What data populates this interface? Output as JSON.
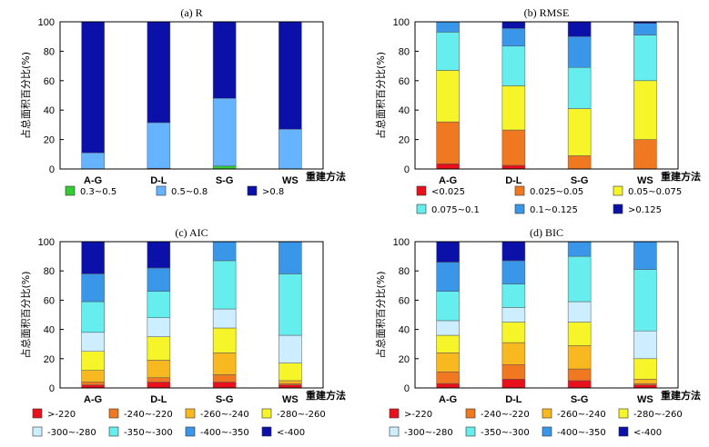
{
  "chart_data": [
    {
      "type": "bar",
      "stacked": true,
      "title": "(a) R",
      "ylabel": "占总面积百分比(%)",
      "xlabel": "重建方法",
      "ylim": [
        0,
        100
      ],
      "yticks": [
        0,
        20,
        40,
        60,
        80,
        100
      ],
      "categories": [
        "A-G",
        "D-L",
        "S-G",
        "WS"
      ],
      "legend_cols": 3,
      "series": [
        {
          "name": "0.3~0.5",
          "color": "#33cc33",
          "values": [
            0,
            0.5,
            2,
            0
          ]
        },
        {
          "name": "0.5~0.8",
          "color": "#66b3ff",
          "values": [
            11,
            31,
            46,
            27
          ]
        },
        {
          "name": ">0.8",
          "color": "#0a10a8",
          "values": [
            89,
            68.5,
            52,
            73
          ]
        }
      ]
    },
    {
      "type": "bar",
      "stacked": true,
      "title": "(b) RMSE",
      "ylabel": "占总面积百分比(%)",
      "xlabel": "重建方法",
      "ylim": [
        0,
        100
      ],
      "yticks": [
        0,
        20,
        40,
        60,
        80,
        100
      ],
      "categories": [
        "A-G",
        "D-L",
        "S-G",
        "WS"
      ],
      "legend_cols": 3,
      "series": [
        {
          "name": "<0.025",
          "color": "#e8101a",
          "values": [
            3.5,
            2.5,
            0,
            0
          ]
        },
        {
          "name": "0.025~0.05",
          "color": "#f07820",
          "values": [
            28.5,
            24,
            9,
            20
          ]
        },
        {
          "name": "0.05~0.075",
          "color": "#f5f52a",
          "values": [
            35,
            30,
            32,
            40
          ]
        },
        {
          "name": "0.075~0.1",
          "color": "#66eeee",
          "values": [
            26,
            27,
            28,
            31
          ]
        },
        {
          "name": "0.1~0.125",
          "color": "#3a96e8",
          "values": [
            7,
            12,
            21,
            8
          ]
        },
        {
          "name": ">0.125",
          "color": "#0a10a8",
          "values": [
            0,
            4.5,
            10,
            1
          ]
        }
      ]
    },
    {
      "type": "bar",
      "stacked": true,
      "title": "(c) AIC",
      "ylabel": "占总面积百分比(%)",
      "xlabel": "重建方法",
      "ylim": [
        0,
        100
      ],
      "yticks": [
        0,
        20,
        40,
        60,
        80,
        100
      ],
      "categories": [
        "A-G",
        "D-L",
        "S-G",
        "WS"
      ],
      "legend_cols": 4,
      "series": [
        {
          "name": ">-220",
          "color": "#e8101a",
          "values": [
            2,
            4,
            4,
            2
          ]
        },
        {
          "name": "-240~-220",
          "color": "#f07820",
          "values": [
            2,
            3,
            5,
            1
          ]
        },
        {
          "name": "-260~-240",
          "color": "#f8b820",
          "values": [
            8,
            12,
            15,
            2
          ]
        },
        {
          "name": "-280~-260",
          "color": "#f5f52a",
          "values": [
            13,
            16,
            17,
            12
          ]
        },
        {
          "name": "-300~-280",
          "color": "#cceeff",
          "values": [
            13,
            13,
            13,
            19
          ]
        },
        {
          "name": "-350~-300",
          "color": "#66eeee",
          "values": [
            21,
            18,
            33,
            42
          ]
        },
        {
          "name": "-400~-350",
          "color": "#3a96e8",
          "values": [
            19,
            16,
            13,
            22
          ]
        },
        {
          "name": "<-400",
          "color": "#0a10a8",
          "values": [
            22,
            18,
            0,
            0
          ]
        }
      ]
    },
    {
      "type": "bar",
      "stacked": true,
      "title": "(d) BIC",
      "ylabel": "占总面积百分比(%)",
      "xlabel": "重建方法",
      "ylim": [
        0,
        100
      ],
      "yticks": [
        0,
        20,
        40,
        60,
        80,
        100
      ],
      "categories": [
        "A-G",
        "D-L",
        "S-G",
        "WS"
      ],
      "legend_cols": 4,
      "series": [
        {
          "name": ">-220",
          "color": "#e8101a",
          "values": [
            3,
            6,
            5,
            2
          ]
        },
        {
          "name": "-240~-220",
          "color": "#f07820",
          "values": [
            8,
            10,
            8,
            1
          ]
        },
        {
          "name": "-260~-240",
          "color": "#f8b820",
          "values": [
            13,
            15,
            16,
            3
          ]
        },
        {
          "name": "-280~-260",
          "color": "#f5f52a",
          "values": [
            12,
            14,
            16,
            14
          ]
        },
        {
          "name": "-300~-280",
          "color": "#cceeff",
          "values": [
            10,
            10,
            14,
            19
          ]
        },
        {
          "name": "-350~-300",
          "color": "#66eeee",
          "values": [
            20,
            16,
            31,
            42
          ]
        },
        {
          "name": "-400~-350",
          "color": "#3a96e8",
          "values": [
            20,
            16,
            10,
            19
          ]
        },
        {
          "name": "<-400",
          "color": "#0a10a8",
          "values": [
            14,
            13,
            0,
            0
          ]
        }
      ]
    }
  ]
}
